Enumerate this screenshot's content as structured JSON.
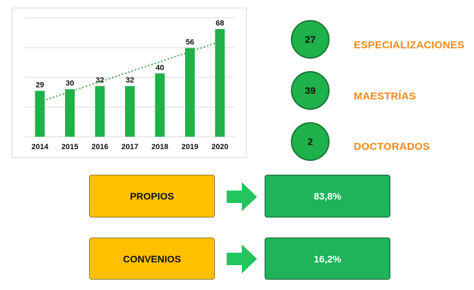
{
  "chart_data": {
    "type": "bar",
    "categories": [
      "2014",
      "2015",
      "2016",
      "2017",
      "2018",
      "2019",
      "2020"
    ],
    "values": [
      29,
      30,
      32,
      32,
      40,
      56,
      68
    ],
    "title": "",
    "xlabel": "",
    "ylabel": "",
    "ylim": [
      0,
      75
    ],
    "grid": true,
    "trendline": "linear",
    "bar_color": "#1fb14a",
    "trend_color": "#3aa845"
  },
  "stats": [
    {
      "value": "27",
      "label": "ESPECIALIZACIONES"
    },
    {
      "value": "39",
      "label": "MAESTRÍAS"
    },
    {
      "value": "2",
      "label": "DOCTORADOS"
    }
  ],
  "flows": [
    {
      "source": "PROPIOS",
      "result": "83,8%"
    },
    {
      "source": "CONVENIOS",
      "result": "16,2%"
    }
  ],
  "colors": {
    "accent_orange": "#f08a1c",
    "box_yellow": "#ffc000",
    "box_green": "#1fb35a",
    "arrow_green": "#22c55e"
  }
}
